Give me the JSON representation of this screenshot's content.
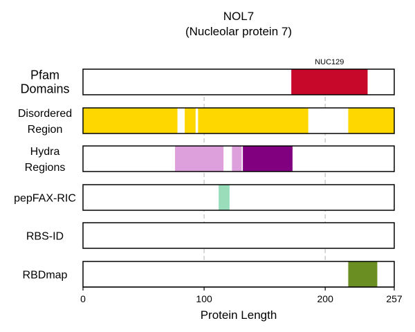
{
  "chart_data": {
    "type": "bar",
    "title": "NOL7",
    "subtitle": "(Nucleolar protein 7)",
    "xlabel": "Protein Length",
    "xlim": [
      0,
      257
    ],
    "xticks": [
      0,
      100,
      200,
      257
    ],
    "grid_x": [
      100,
      200
    ],
    "tracks": [
      {
        "label_lines": [
          "Pfam",
          "Domains"
        ],
        "segments": [
          {
            "start": 172,
            "end": 235,
            "color": "#C8082A",
            "label": "NUC129"
          }
        ]
      },
      {
        "label_lines": [
          "Disordered",
          "Region"
        ],
        "segments": [
          {
            "start": 0,
            "end": 78,
            "color": "#FFD700"
          },
          {
            "start": 84,
            "end": 93,
            "color": "#FFD700"
          },
          {
            "start": 95,
            "end": 186,
            "color": "#FFD700"
          },
          {
            "start": 219,
            "end": 257,
            "color": "#FFD700"
          }
        ]
      },
      {
        "label_lines": [
          "Hydra",
          "Regions"
        ],
        "segments": [
          {
            "start": 76,
            "end": 116,
            "color": "#DDA0DD"
          },
          {
            "start": 123,
            "end": 131,
            "color": "#DDA0DD"
          },
          {
            "start": 132,
            "end": 173,
            "color": "#800080"
          }
        ]
      },
      {
        "label_lines": [
          "pepFAX-RIC"
        ],
        "segments": [
          {
            "start": 112,
            "end": 121,
            "color": "#99DDBB"
          }
        ]
      },
      {
        "label_lines": [
          "RBS-ID"
        ],
        "segments": []
      },
      {
        "label_lines": [
          "RBDmap"
        ],
        "segments": [
          {
            "start": 219,
            "end": 243,
            "color": "#6B8E23"
          }
        ]
      }
    ]
  }
}
